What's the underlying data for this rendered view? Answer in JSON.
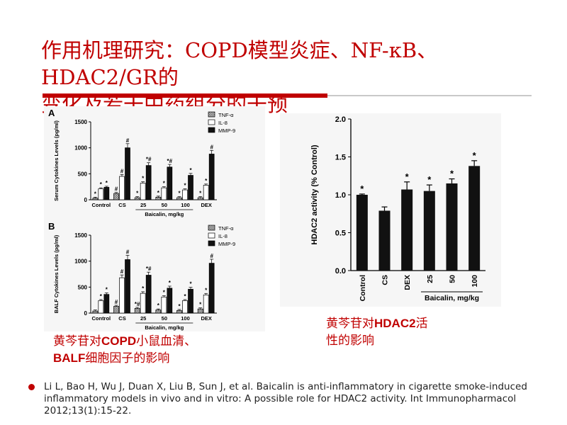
{
  "slide": {
    "title_line1": "作用机理研究：COPD模型炎症、NF-κB、HDAC2/GR的",
    "title_line2": "变化及若干中药组分的干预",
    "caption_left_1a": "黄芩苷对",
    "caption_left_1b": "COPD",
    "caption_left_1c": "小鼠血清、",
    "caption_left_2a": "BALF",
    "caption_left_2b": "细胞因子的影响",
    "caption_right_1a": "黄芩苷对",
    "caption_right_1b": "HDAC2",
    "caption_right_1c": "活",
    "caption_right_2": "性的影响",
    "reference": "Li L, Bao H, Wu J, Duan X, Liu B, Sun J, et al. Baicalin is anti-inflammatory in cigarette smoke-induced inflammatory models in vivo and in vitro: A possible role for HDAC2 activity. Int Immunopharmacol 2012;13(1):15-22.",
    "colors": {
      "title": "#c00000",
      "rule": "#c00000",
      "caption": "#c00000"
    }
  },
  "chart_data": [
    {
      "type": "bar",
      "panel_label": "A",
      "ylabel": "Serum Cytokines Levels (pg/ml)",
      "xlabel": "Baicalin, mg/kg",
      "categories": [
        "Control",
        "CS",
        "25",
        "50",
        "100",
        "DEX"
      ],
      "ylim": [
        0,
        1500
      ],
      "yticks": [
        "0",
        "500",
        "1000",
        "1500"
      ],
      "legend_position": "top-right",
      "series": [
        {
          "name": "TNF-α",
          "values": [
            30,
            120,
            40,
            50,
            40,
            40
          ],
          "fill": "hatched",
          "markers": [
            "*",
            "#",
            "*",
            "*",
            "*",
            "*"
          ]
        },
        {
          "name": "IL-8",
          "values": [
            210,
            450,
            320,
            230,
            190,
            280
          ],
          "fill": "white",
          "markers": [
            "*",
            "#",
            "*",
            "*",
            "*",
            "*"
          ]
        },
        {
          "name": "MMP-9",
          "values": [
            240,
            1000,
            660,
            630,
            470,
            880
          ],
          "fill": "black",
          "markers": [
            "*",
            "#",
            "*#",
            "*#",
            "*",
            "#"
          ]
        }
      ]
    },
    {
      "type": "bar",
      "panel_label": "B",
      "ylabel": "BALF Cytokines Levels (pg/ml)",
      "xlabel": "Baicalin, mg/kg",
      "categories": [
        "Control",
        "CS",
        "25",
        "50",
        "100",
        "DEX"
      ],
      "ylim": [
        0,
        1500
      ],
      "yticks": [
        "0",
        "500",
        "1000",
        "1500"
      ],
      "legend_position": "top-right",
      "series": [
        {
          "name": "TNF-α",
          "values": [
            40,
            130,
            90,
            60,
            50,
            80
          ],
          "fill": "hatched",
          "markers": [
            "",
            "#",
            "*#",
            "*",
            "*",
            "*"
          ]
        },
        {
          "name": "IL-8",
          "values": [
            240,
            680,
            380,
            310,
            240,
            350
          ],
          "fill": "white",
          "markers": [
            "*",
            "#",
            "*",
            "*",
            "*",
            "*"
          ]
        },
        {
          "name": "MMP-9",
          "values": [
            360,
            1030,
            730,
            480,
            460,
            960
          ],
          "fill": "black",
          "markers": [
            "*",
            "#",
            "*#",
            "*",
            "*",
            "#"
          ]
        }
      ]
    },
    {
      "type": "bar",
      "ylabel": "HDAC2 activity (% Control)",
      "xlabel": "Baicalin, mg/kg",
      "categories": [
        "Control",
        "CS",
        "DEX",
        "25",
        "50",
        "100"
      ],
      "values": [
        1.0,
        0.79,
        1.07,
        1.05,
        1.15,
        1.38
      ],
      "errors": [
        0.01,
        0.05,
        0.1,
        0.08,
        0.06,
        0.07
      ],
      "markers": [
        "*",
        "",
        "*",
        "*",
        "*",
        "*"
      ],
      "ylim": [
        0,
        2.0
      ],
      "yticks": [
        "0.0",
        "0.5",
        "1.0",
        "1.5",
        "2.0"
      ],
      "bracket_start_index": 3
    }
  ]
}
